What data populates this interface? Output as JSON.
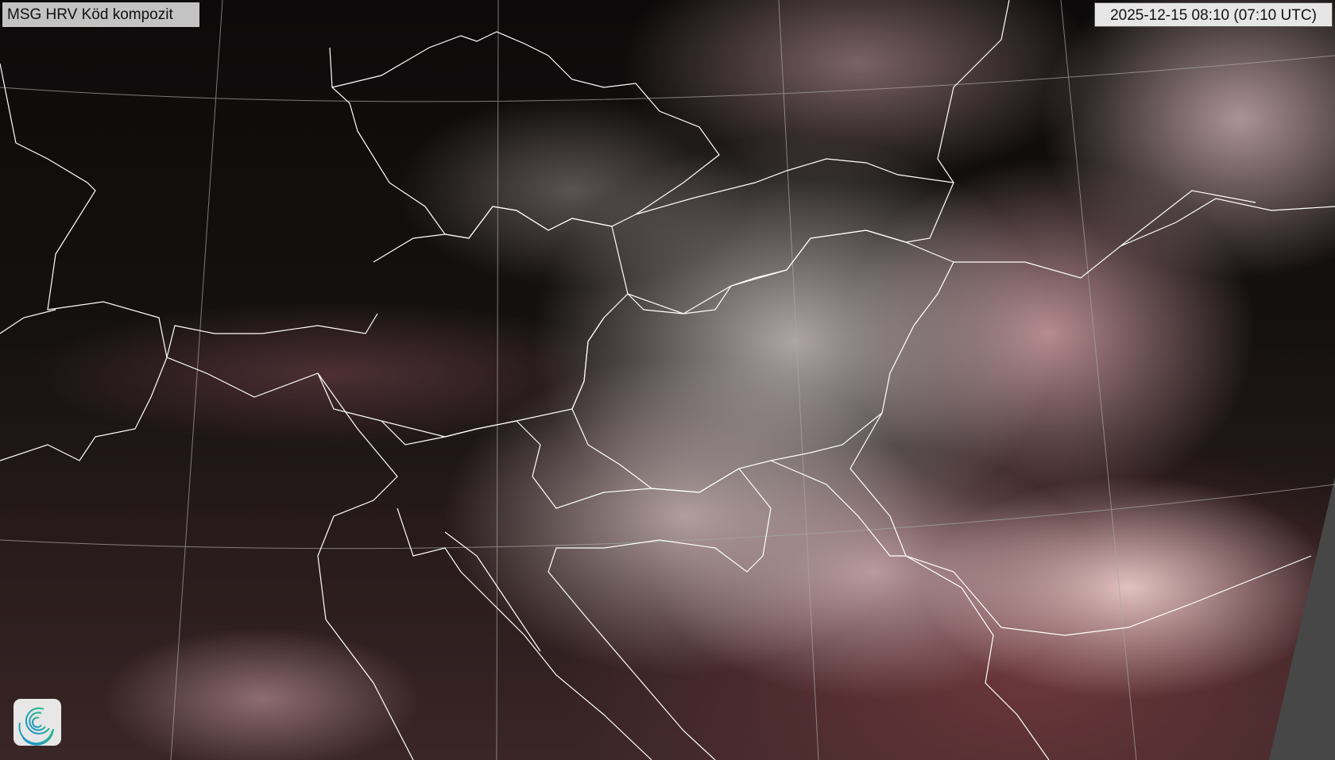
{
  "header": {
    "title": "MSG HRV Köd kompozit",
    "timestamp": "2025-12-15 08:10 (07:10 UTC)"
  },
  "map": {
    "product": "satellite-composite",
    "border_color": "#ffffff",
    "graticule_color": "#b0b0b0",
    "nodata_color": "#474747",
    "logo_icon": "spiral-logo-icon"
  }
}
